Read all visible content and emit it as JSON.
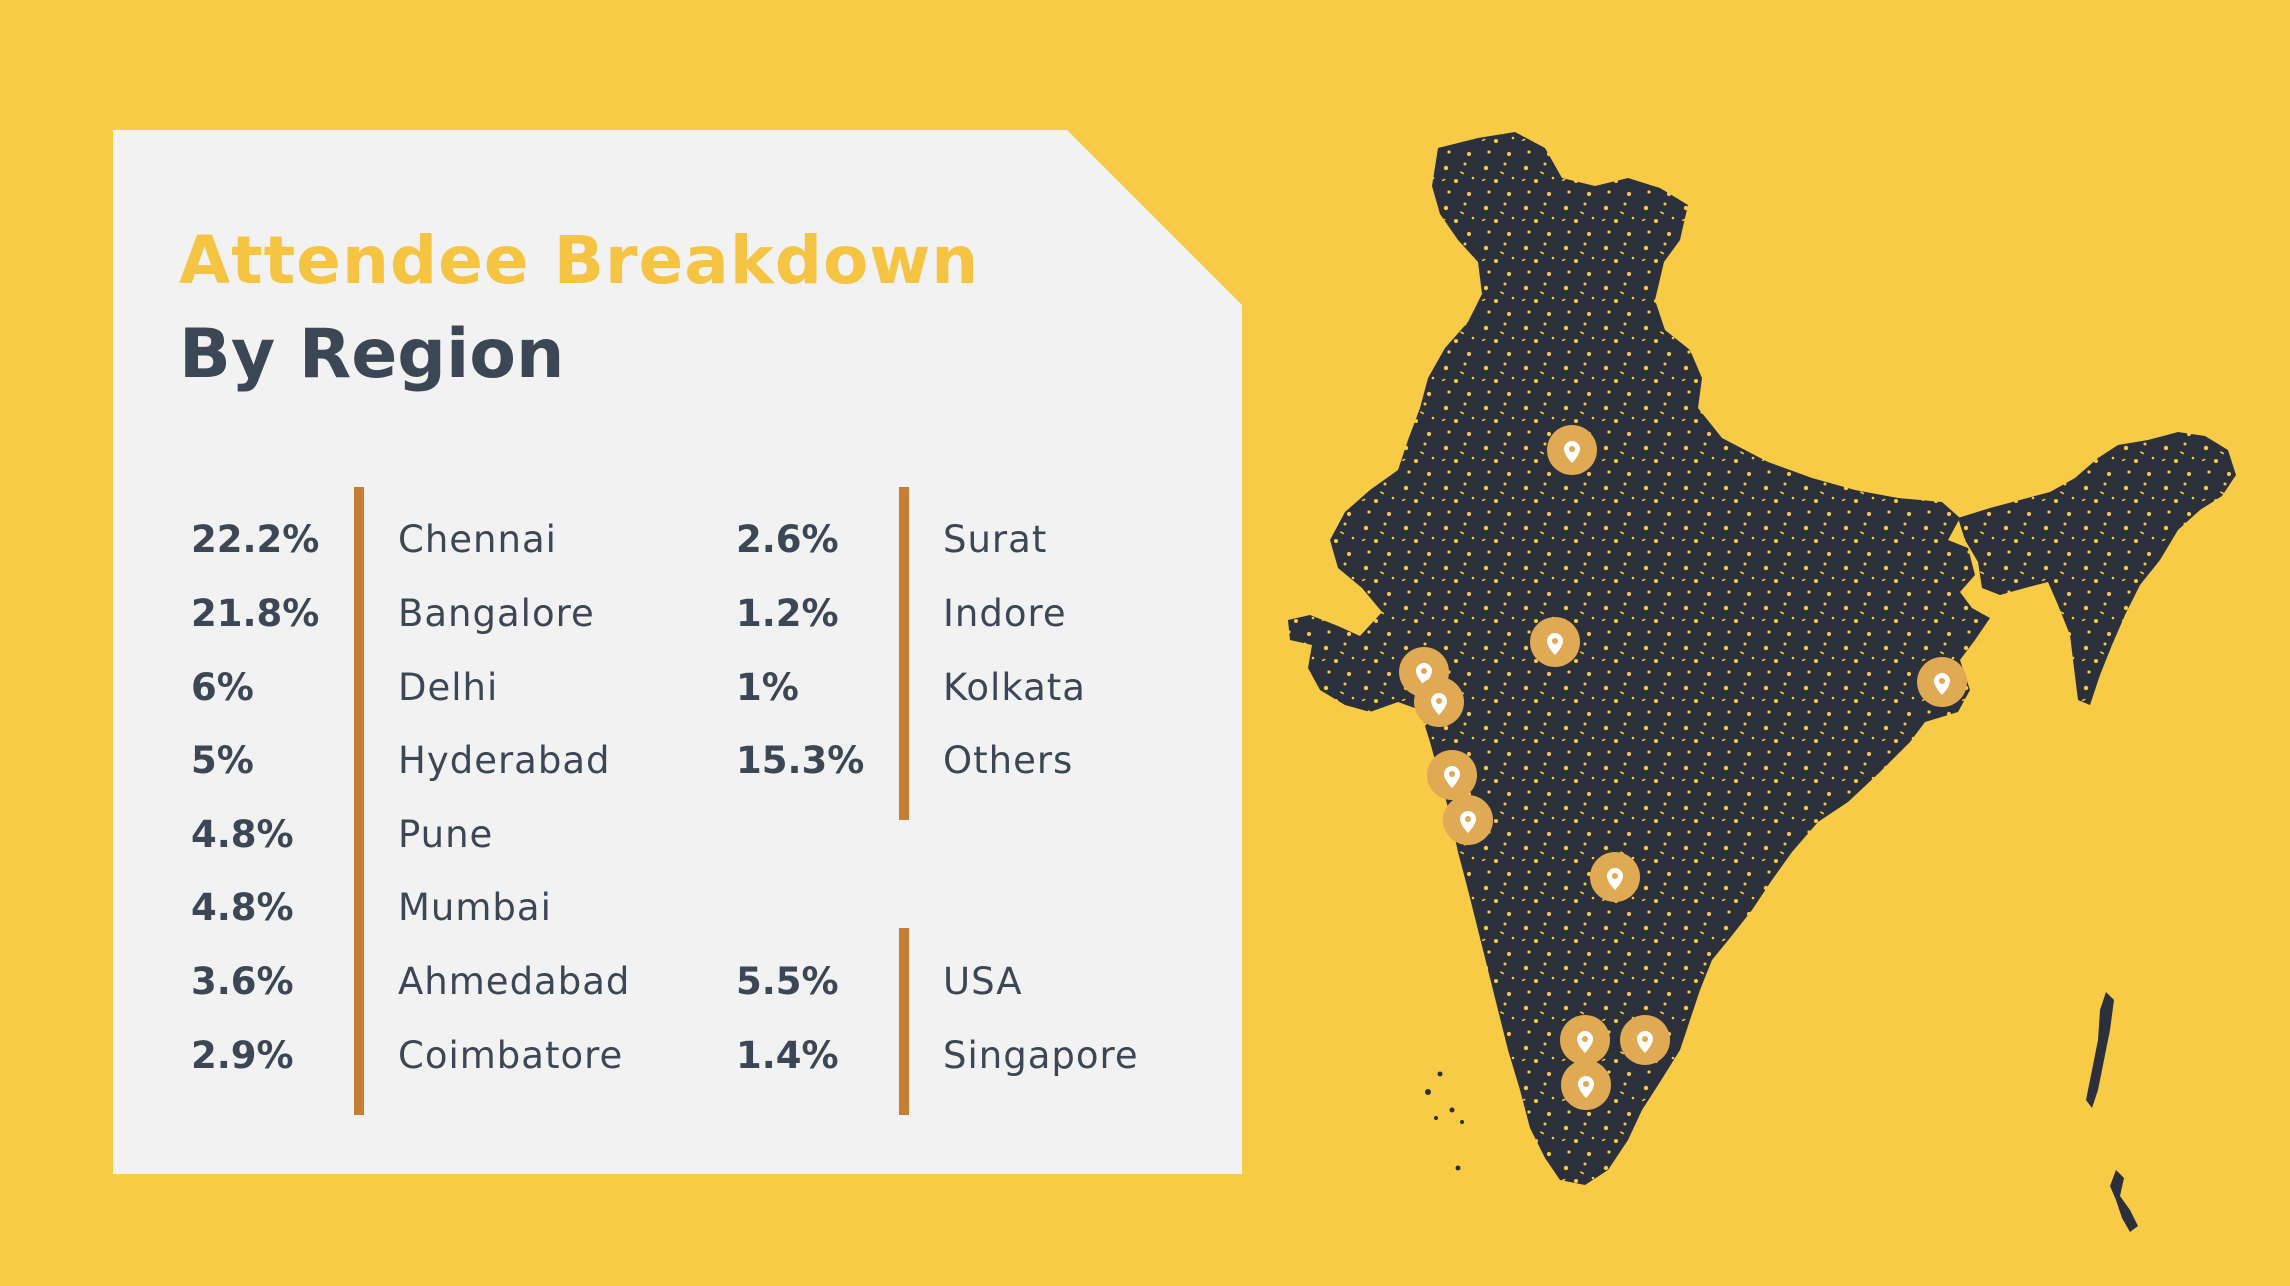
{
  "heading": {
    "title": "Attendee Breakdown",
    "subtitle": "By Region"
  },
  "columns": [
    {
      "rows": [
        {
          "percent": "22.2%",
          "region": "Chennai"
        },
        {
          "percent": "21.8%",
          "region": "Bangalore"
        },
        {
          "percent": "6%",
          "region": "Delhi"
        },
        {
          "percent": "5%",
          "region": "Hyderabad"
        },
        {
          "percent": "4.8%",
          "region": "Pune"
        },
        {
          "percent": "4.8%",
          "region": "Mumbai"
        },
        {
          "percent": "3.6%",
          "region": "Ahmedabad"
        },
        {
          "percent": "2.9%",
          "region": "Coimbatore"
        }
      ]
    },
    {
      "rows": [
        {
          "percent": "2.6%",
          "region": "Surat"
        },
        {
          "percent": "1.2%",
          "region": "Indore"
        },
        {
          "percent": "1%",
          "region": "Kolkata"
        },
        {
          "percent": "15.3%",
          "region": "Others"
        }
      ]
    },
    {
      "rows": [
        {
          "percent": "5.5%",
          "region": "USA"
        },
        {
          "percent": "1.4%",
          "region": "Singapore"
        }
      ]
    }
  ],
  "map": {
    "icon": "location-pin-icon",
    "marker_count": 13
  },
  "colors": {
    "background": "#F7CB45",
    "card": "#F3F2F2",
    "title": "#F5C443",
    "text": "#3C4756",
    "accent_bar": "#C47F35",
    "map_fill": "#2B303A",
    "marker": "#E0A954"
  }
}
